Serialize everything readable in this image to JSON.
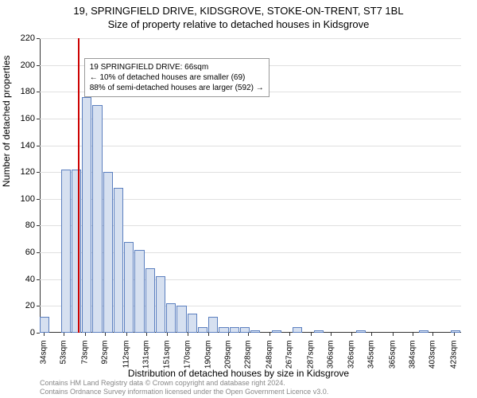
{
  "title": "19, SPRINGFIELD DRIVE, KIDSGROVE, STOKE-ON-TRENT, ST7 1BL",
  "subtitle": "Size of property relative to detached houses in Kidsgrove",
  "ylabel": "Number of detached properties",
  "xlabel": "Distribution of detached houses by size in Kidsgrove",
  "credits_line1": "Contains HM Land Registry data © Crown copyright and database right 2024.",
  "credits_line2": "Contains Ordnance Survey information licensed under the Open Government Licence v3.0.",
  "chart": {
    "type": "histogram",
    "background_color": "#ffffff",
    "grid_color": "#e0e0e0",
    "bar_fill": "#d6e0f0",
    "bar_border": "#5b7fbf",
    "reference_color": "#cc0000",
    "reference_value": 66,
    "ylim": [
      0,
      220
    ],
    "ytick_step": 20,
    "xlim": [
      30,
      430
    ],
    "x_bin_width": 10,
    "x_tick_labels": [
      "34sqm",
      "53sqm",
      "73sqm",
      "92sqm",
      "112sqm",
      "131sqm",
      "151sqm",
      "170sqm",
      "190sqm",
      "209sqm",
      "228sqm",
      "248sqm",
      "267sqm",
      "287sqm",
      "306sqm",
      "326sqm",
      "345sqm",
      "365sqm",
      "384sqm",
      "403sqm",
      "423sqm"
    ],
    "x_tick_values": [
      34,
      53,
      73,
      92,
      112,
      131,
      151,
      170,
      190,
      209,
      228,
      248,
      267,
      287,
      306,
      326,
      345,
      365,
      384,
      403,
      423
    ],
    "bars": [
      {
        "x": 30,
        "v": 12
      },
      {
        "x": 50,
        "v": 122
      },
      {
        "x": 60,
        "v": 122
      },
      {
        "x": 70,
        "v": 176
      },
      {
        "x": 80,
        "v": 170
      },
      {
        "x": 90,
        "v": 120
      },
      {
        "x": 100,
        "v": 108
      },
      {
        "x": 110,
        "v": 68
      },
      {
        "x": 120,
        "v": 62
      },
      {
        "x": 130,
        "v": 48
      },
      {
        "x": 140,
        "v": 42
      },
      {
        "x": 150,
        "v": 22
      },
      {
        "x": 160,
        "v": 20
      },
      {
        "x": 170,
        "v": 14
      },
      {
        "x": 180,
        "v": 4
      },
      {
        "x": 190,
        "v": 12
      },
      {
        "x": 200,
        "v": 4
      },
      {
        "x": 210,
        "v": 4
      },
      {
        "x": 220,
        "v": 4
      },
      {
        "x": 230,
        "v": 2
      },
      {
        "x": 250,
        "v": 2
      },
      {
        "x": 270,
        "v": 4
      },
      {
        "x": 290,
        "v": 2
      },
      {
        "x": 330,
        "v": 2
      },
      {
        "x": 390,
        "v": 2
      },
      {
        "x": 420,
        "v": 2
      }
    ],
    "info_box": {
      "line1": "19 SPRINGFIELD DRIVE: 66sqm",
      "line2": "← 10% of detached houses are smaller (69)",
      "line3": "88% of semi-detached houses are larger (592) →"
    }
  }
}
